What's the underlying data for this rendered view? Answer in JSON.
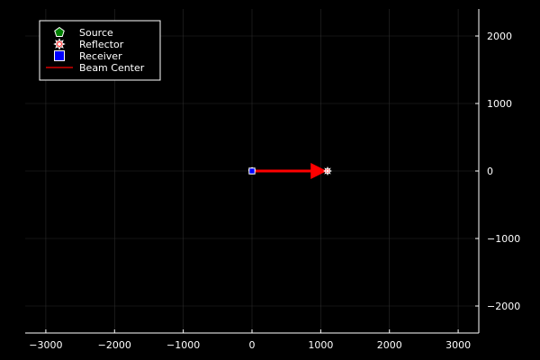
{
  "chart_data": {
    "type": "scatter",
    "title": "",
    "xlabel": "",
    "ylabel": "",
    "xlim": [
      -3300,
      3300
    ],
    "ylim": [
      -2400,
      2400
    ],
    "x_ticks": [
      -3000,
      -2000,
      -1000,
      0,
      1000,
      2000,
      3000
    ],
    "y_ticks": [
      -2000,
      -1000,
      0,
      1000,
      2000
    ],
    "x_tick_labels": [
      "−3000",
      "−2000",
      "−1000",
      "0",
      "1000",
      "2000",
      "3000"
    ],
    "y_tick_labels": [
      "−2000",
      "−1000",
      "0",
      "1000",
      "2000"
    ],
    "y_axis_side": "right",
    "grid": true,
    "legend_placement": "top-left",
    "series": [
      {
        "name": "Source",
        "marker": "pentagon",
        "color": "#008000",
        "points": [
          [
            0,
            0
          ]
        ]
      },
      {
        "name": "Reflector",
        "marker": "star",
        "color": "#ffffff",
        "accent": "#ff0000",
        "points": [
          [
            1100,
            0
          ]
        ]
      },
      {
        "name": "Receiver",
        "marker": "square",
        "color": "#0000ff",
        "points": [
          [
            0,
            0
          ]
        ]
      },
      {
        "name": "Beam Center",
        "marker": "arrow",
        "color": "#ff0000",
        "from": [
          0,
          0
        ],
        "to": [
          1050,
          0
        ]
      }
    ]
  }
}
